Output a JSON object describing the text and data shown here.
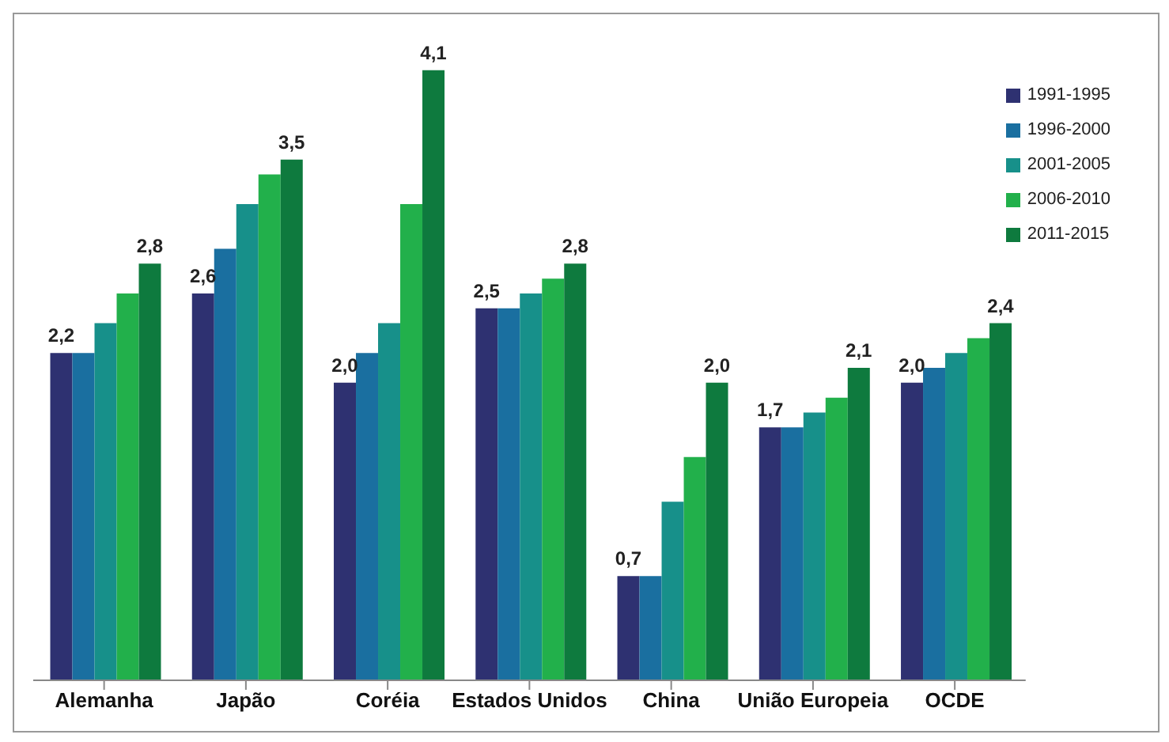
{
  "chart_data": {
    "type": "bar",
    "categories": [
      "Alemanha",
      "Japão",
      "Coréia",
      "Estados Unidos",
      "China",
      "União Europeia",
      "OCDE"
    ],
    "series": [
      {
        "name": "1991-1995",
        "color": "#2e3171",
        "values": [
          2.2,
          2.6,
          2.0,
          2.5,
          0.7,
          1.7,
          2.0
        ],
        "value_labels": [
          "2,2",
          "2,6",
          "2,0",
          "2,5",
          "0,7",
          "1,7",
          "2,0"
        ]
      },
      {
        "name": "1996-2000",
        "color": "#1a6fa0",
        "values": [
          2.2,
          2.9,
          2.2,
          2.5,
          0.7,
          1.7,
          2.1
        ],
        "value_labels": [
          null,
          null,
          null,
          null,
          null,
          null,
          null
        ]
      },
      {
        "name": "2001-2005",
        "color": "#17908a",
        "values": [
          2.4,
          3.2,
          2.4,
          2.6,
          1.2,
          1.8,
          2.2
        ],
        "value_labels": [
          null,
          null,
          null,
          null,
          null,
          null,
          null
        ]
      },
      {
        "name": "2006-2010",
        "color": "#22b04b",
        "values": [
          2.6,
          3.4,
          3.2,
          2.7,
          1.5,
          1.9,
          2.3
        ],
        "value_labels": [
          null,
          null,
          null,
          null,
          null,
          null,
          null
        ]
      },
      {
        "name": "2011-2015",
        "color": "#0e7a3e",
        "values": [
          2.8,
          3.5,
          4.1,
          2.8,
          2.0,
          2.1,
          2.4
        ],
        "value_labels": [
          "2,8",
          "3,5",
          "4,1",
          "2,8",
          "2,0",
          "2,1",
          "2,4"
        ]
      }
    ],
    "legend": "top right",
    "grid": false
  }
}
